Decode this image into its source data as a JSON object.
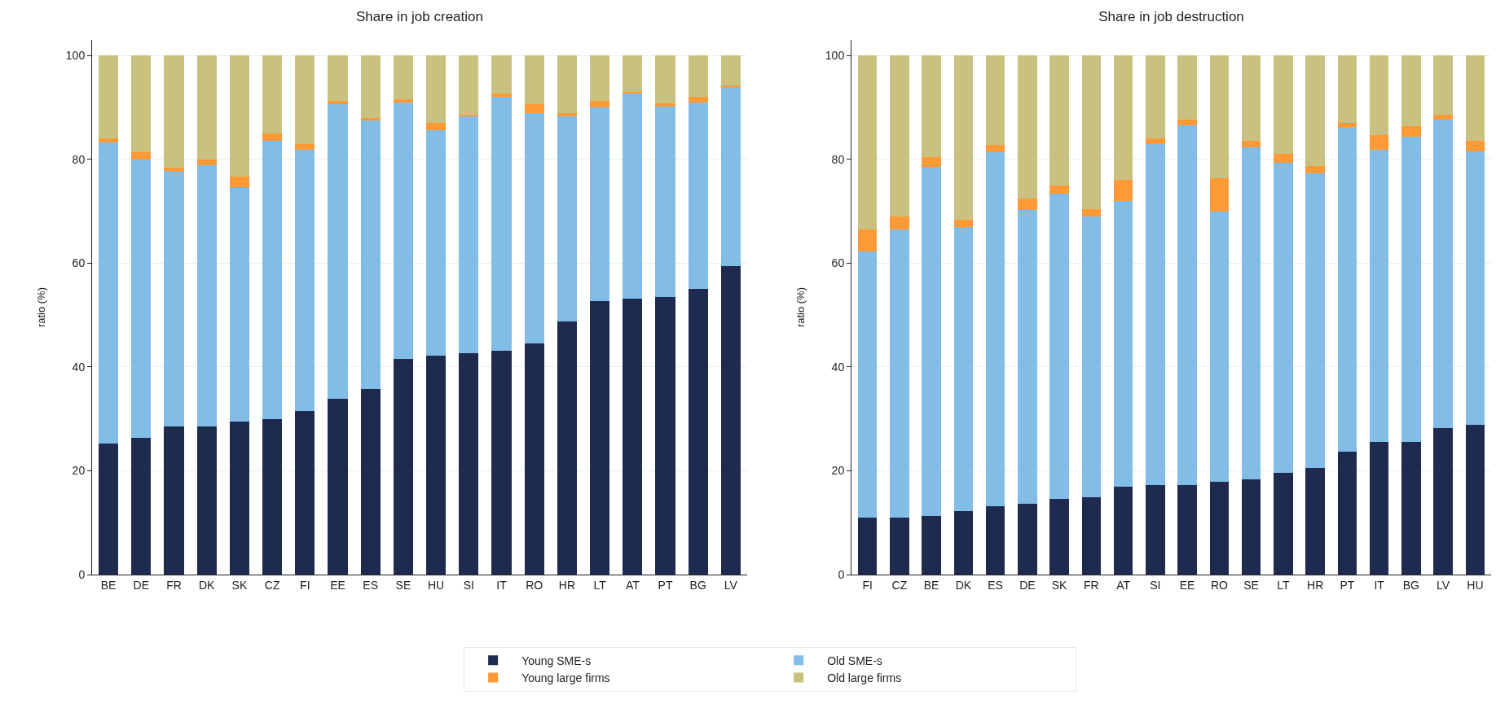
{
  "chart_data": [
    {
      "type": "bar",
      "stacked": true,
      "title": "Share in job creation",
      "ylabel": "ratio (%)",
      "categories": [
        "BE",
        "DE",
        "FR",
        "DK",
        "SK",
        "CZ",
        "FI",
        "EE",
        "ES",
        "SE",
        "HU",
        "SI",
        "IT",
        "RO",
        "HR",
        "LT",
        "AT",
        "PT",
        "BG",
        "LV"
      ],
      "ylim": [
        0,
        103
      ],
      "yticks": [
        0,
        20,
        40,
        60,
        80,
        100
      ],
      "grid": "y",
      "legend": "bottom",
      "series": [
        {
          "name": "Young SME-s",
          "color": "#1f2a4f",
          "values": [
            25.2,
            26.3,
            28.5,
            28.5,
            29.4,
            29.9,
            31.5,
            33.8,
            35.8,
            41.5,
            42.1,
            42.7,
            43.1,
            44.5,
            48.8,
            52.7,
            53.1,
            53.4,
            55.0,
            59.4
          ]
        },
        {
          "name": "Old SME-s",
          "color": "#82bde8",
          "values": [
            58.1,
            53.6,
            49.3,
            50.4,
            45.0,
            53.6,
            50.4,
            56.8,
            51.7,
            49.4,
            43.5,
            45.6,
            48.9,
            44.4,
            39.4,
            37.3,
            39.5,
            36.7,
            35.9,
            34.5
          ]
        },
        {
          "name": "Young large firms",
          "color": "#fd9a35",
          "values": [
            0.7,
            1.5,
            0.6,
            1.0,
            2.3,
            1.5,
            1.0,
            0.7,
            0.5,
            0.7,
            1.4,
            0.3,
            0.6,
            1.7,
            0.7,
            1.3,
            0.4,
            0.6,
            1.1,
            0.3
          ]
        },
        {
          "name": "Old large firms",
          "color": "#c9c17f",
          "values": [
            16.0,
            18.6,
            21.6,
            20.1,
            23.3,
            15.0,
            17.1,
            8.7,
            12.0,
            8.4,
            13.0,
            11.4,
            7.4,
            9.4,
            11.1,
            8.7,
            7.0,
            9.3,
            8.0,
            5.8
          ]
        }
      ]
    },
    {
      "type": "bar",
      "stacked": true,
      "title": "Share in job destruction",
      "ylabel": "ratio (%)",
      "categories": [
        "FI",
        "CZ",
        "BE",
        "DK",
        "ES",
        "DE",
        "SK",
        "FR",
        "AT",
        "SI",
        "EE",
        "RO",
        "SE",
        "LT",
        "HR",
        "PT",
        "IT",
        "BG",
        "LV",
        "HU"
      ],
      "ylim": [
        0,
        103
      ],
      "yticks": [
        0,
        20,
        40,
        60,
        80,
        100
      ],
      "grid": "y",
      "series": [
        {
          "color": "#1f2a4f",
          "values": [
            10.9,
            10.9,
            11.3,
            12.3,
            13.2,
            13.6,
            14.6,
            14.9,
            16.9,
            17.3,
            17.3,
            17.8,
            18.3,
            19.6,
            20.6,
            23.6,
            25.6,
            25.6,
            28.2,
            28.9
          ]
        },
        {
          "color": "#82bde8",
          "values": [
            51.4,
            55.5,
            67.3,
            54.7,
            68.1,
            56.7,
            58.8,
            54.1,
            55.1,
            65.6,
            69.3,
            52.2,
            64.0,
            59.7,
            56.7,
            62.7,
            56.3,
            58.7,
            59.4,
            52.7
          ]
        },
        {
          "color": "#fd9a35",
          "values": [
            4.1,
            2.6,
            1.8,
            1.3,
            1.4,
            2.1,
            1.6,
            1.4,
            4.0,
            1.1,
            1.0,
            6.3,
            1.3,
            1.7,
            1.4,
            0.7,
            2.8,
            2.1,
            1.0,
            2.0
          ]
        },
        {
          "color": "#c9c17f",
          "values": [
            33.6,
            31.0,
            19.6,
            31.7,
            17.3,
            27.6,
            25.0,
            29.6,
            24.0,
            16.0,
            12.4,
            23.7,
            16.4,
            19.0,
            21.3,
            13.0,
            15.3,
            13.6,
            11.4,
            16.4
          ]
        }
      ]
    }
  ]
}
